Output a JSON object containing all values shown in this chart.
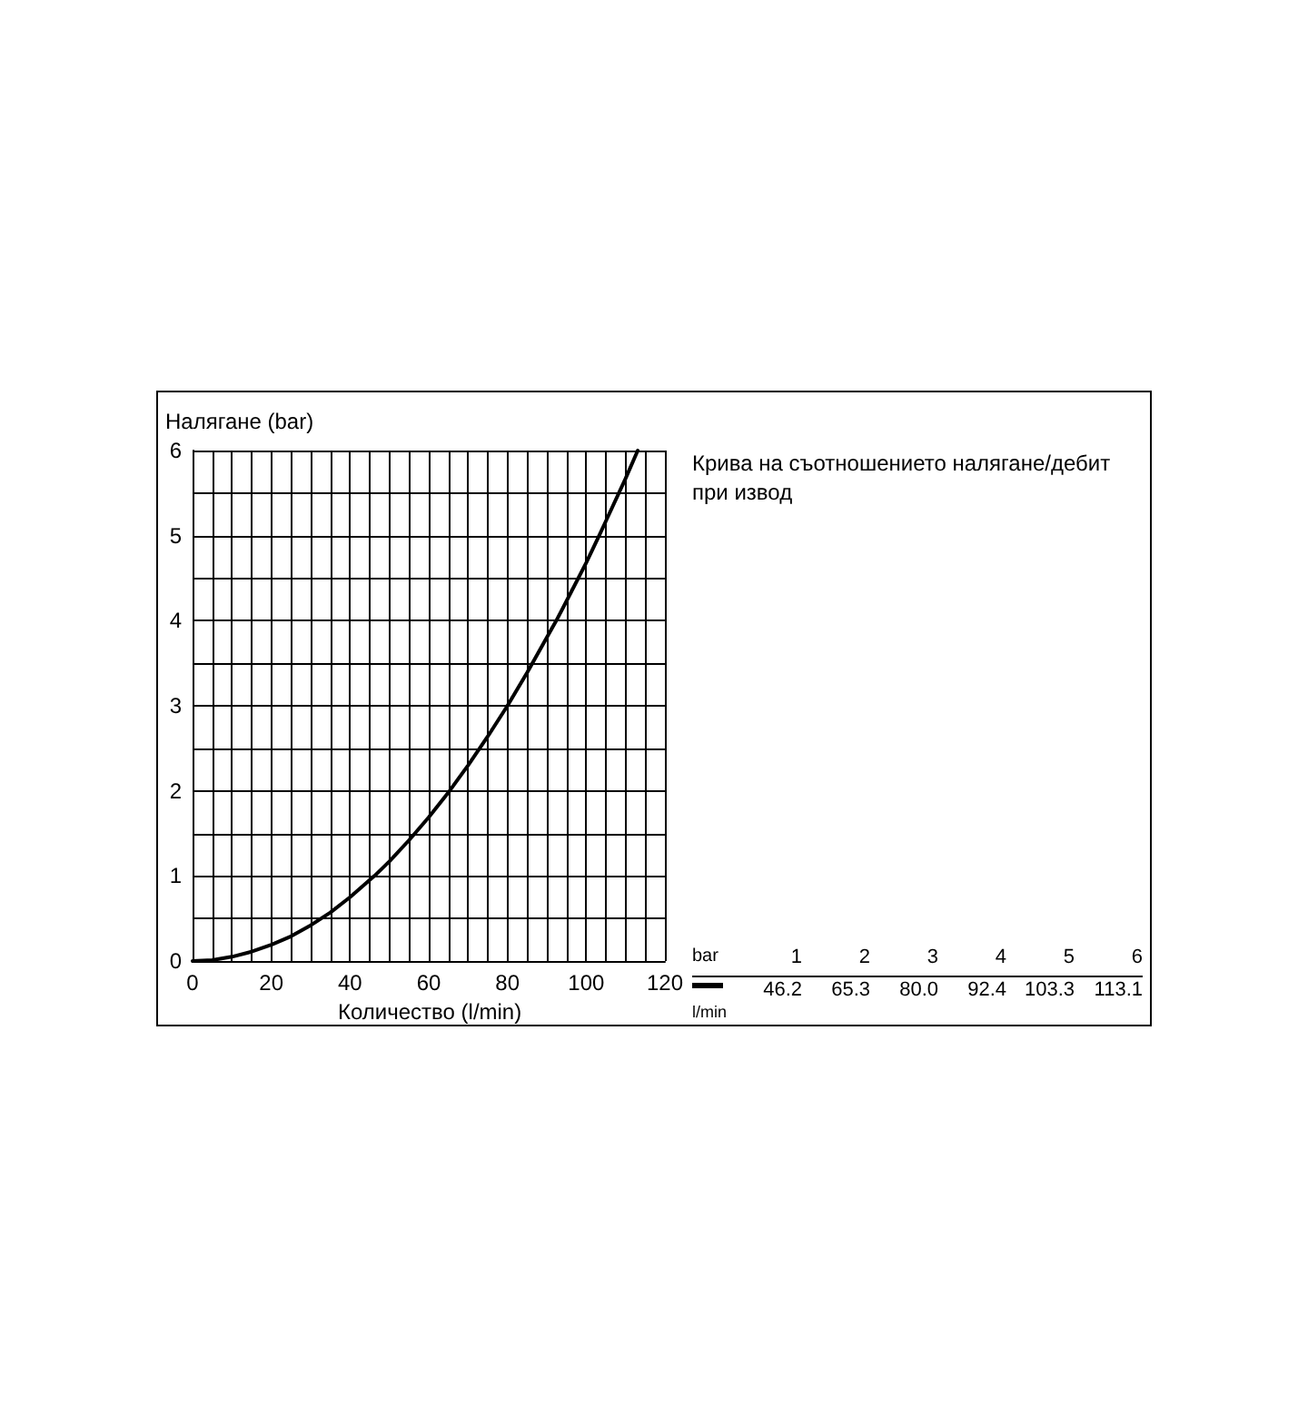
{
  "chart_data": {
    "type": "line",
    "title": "Крива на съотношението налягане/дебит при извод",
    "xlabel": "Количество (l/min)",
    "ylabel": "Налягане (bar)",
    "x": [
      0,
      5,
      10,
      15,
      20,
      25,
      30,
      35,
      40,
      46.2,
      50,
      55,
      60,
      65.3,
      70,
      75,
      80,
      85,
      92.4,
      95,
      100,
      103.3,
      105,
      110,
      113.1
    ],
    "series": [
      {
        "color": "#000000",
        "values": [
          0,
          0.01,
          0.05,
          0.11,
          0.19,
          0.29,
          0.42,
          0.57,
          0.75,
          1,
          1.17,
          1.42,
          1.69,
          2,
          2.3,
          2.64,
          3,
          3.39,
          4,
          4.23,
          4.68,
          5,
          5.17,
          5.67,
          6
        ]
      }
    ],
    "annotations": [
      "bar",
      "l/min",
      "1",
      "2",
      "3",
      "4",
      "5",
      "6",
      "46.2",
      "65.3",
      "80.0",
      "92.4",
      "103.3",
      "113.1"
    ],
    "xlim": [
      0,
      120
    ],
    "xticks": [
      0,
      20,
      40,
      60,
      80,
      100,
      120
    ],
    "ylim": [
      0,
      6
    ],
    "yticks": [
      0,
      1,
      2,
      3,
      4,
      5,
      6
    ],
    "grid": true,
    "marker": "none",
    "line_style": "solid"
  }
}
